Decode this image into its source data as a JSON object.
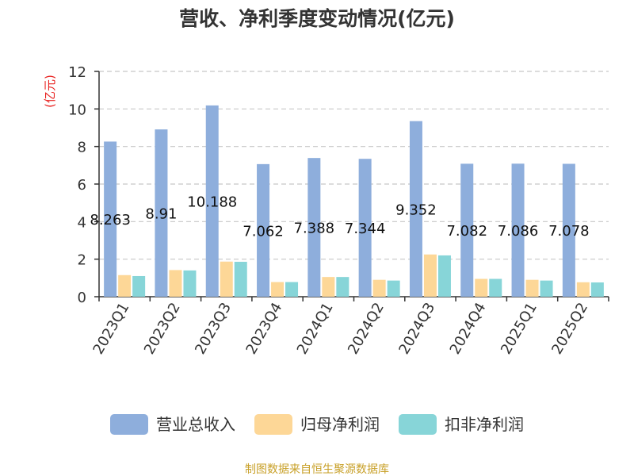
{
  "chart_data": {
    "type": "bar",
    "title": "营收、净利季度变动情况(亿元)",
    "ylabel": "(亿元)",
    "xlabel": "",
    "ylim": [
      0,
      12
    ],
    "yticks": [
      0,
      2,
      4,
      6,
      8,
      10,
      12
    ],
    "grid": true,
    "legend_position": "bottom",
    "categories": [
      "2023Q1",
      "2023Q2",
      "2023Q3",
      "2023Q4",
      "2024Q1",
      "2024Q2",
      "2024Q3",
      "2024Q4",
      "2025Q1",
      "2025Q2"
    ],
    "series": [
      {
        "name": "营业总收入",
        "color": "#8eaedc",
        "values": [
          8.263,
          8.91,
          10.188,
          7.062,
          7.388,
          7.344,
          9.352,
          7.082,
          7.086,
          7.078
        ],
        "labels": [
          "8.263",
          "8.91",
          "10.188",
          "7.062",
          "7.388",
          "7.344",
          "9.352",
          "7.082",
          "7.086",
          "7.078"
        ]
      },
      {
        "name": "归母净利润",
        "color": "#fdd797",
        "values": [
          1.15,
          1.42,
          1.87,
          0.78,
          1.05,
          0.9,
          2.25,
          0.95,
          0.9,
          0.77
        ]
      },
      {
        "name": "扣非净利润",
        "color": "#87d5d8",
        "values": [
          1.1,
          1.4,
          1.86,
          0.78,
          1.05,
          0.86,
          2.2,
          0.95,
          0.86,
          0.76
        ]
      }
    ],
    "source": "制图数据来自恒生聚源数据库",
    "colors": {
      "title": "#333333",
      "ylabel": "#e8211f",
      "source": "#c8a028",
      "grid": "#c8c8c8",
      "axis": "#333333"
    }
  }
}
